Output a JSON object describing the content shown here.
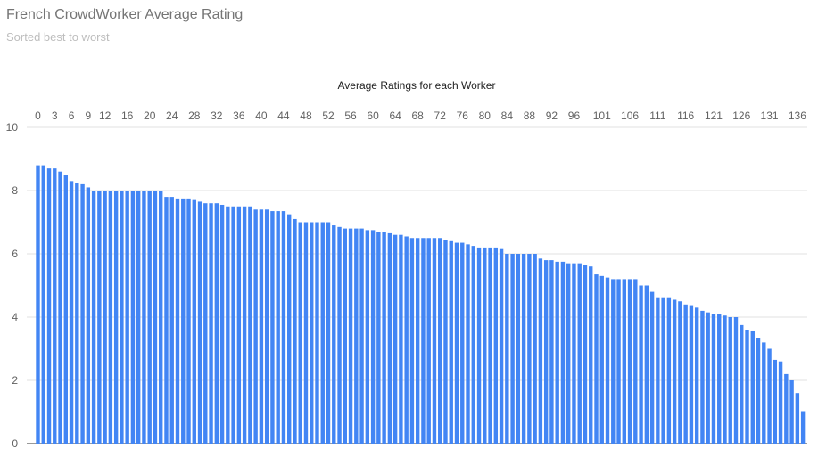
{
  "chart_data": {
    "type": "bar",
    "title": "French CrowdWorker Average Rating",
    "subtitle": "Sorted best to worst",
    "xlabel": "Average Ratings for each Worker",
    "ylabel": "",
    "x_axis_position": "top",
    "ylim": [
      0,
      10
    ],
    "yticks": [
      0,
      2,
      4,
      6,
      8,
      10
    ],
    "grid": true,
    "bar_color": "#4285f4",
    "x_tick_labels": [
      "0",
      "3",
      "6",
      "9",
      "12",
      "16",
      "20",
      "24",
      "28",
      "32",
      "36",
      "40",
      "44",
      "48",
      "52",
      "56",
      "60",
      "64",
      "68",
      "72",
      "76",
      "80",
      "84",
      "88",
      "92",
      "96",
      "101",
      "106",
      "111",
      "116",
      "121",
      "126",
      "131",
      "136"
    ],
    "x_tick_indices": [
      0,
      3,
      6,
      9,
      12,
      16,
      20,
      24,
      28,
      32,
      36,
      40,
      44,
      48,
      52,
      56,
      60,
      64,
      68,
      72,
      76,
      80,
      84,
      88,
      92,
      96,
      101,
      106,
      111,
      116,
      121,
      126,
      131,
      136
    ],
    "values": [
      8.8,
      8.8,
      8.7,
      8.7,
      8.6,
      8.5,
      8.3,
      8.25,
      8.2,
      8.1,
      8.0,
      8.0,
      8.0,
      8.0,
      8.0,
      8.0,
      8.0,
      8.0,
      8.0,
      8.0,
      8.0,
      8.0,
      8.0,
      7.8,
      7.8,
      7.75,
      7.75,
      7.75,
      7.7,
      7.65,
      7.6,
      7.6,
      7.6,
      7.55,
      7.5,
      7.5,
      7.5,
      7.5,
      7.5,
      7.4,
      7.4,
      7.4,
      7.35,
      7.35,
      7.35,
      7.25,
      7.1,
      7.0,
      7.0,
      7.0,
      7.0,
      7.0,
      7.0,
      6.9,
      6.85,
      6.8,
      6.8,
      6.8,
      6.8,
      6.75,
      6.75,
      6.7,
      6.7,
      6.65,
      6.6,
      6.6,
      6.55,
      6.5,
      6.5,
      6.5,
      6.5,
      6.5,
      6.5,
      6.45,
      6.4,
      6.35,
      6.35,
      6.3,
      6.25,
      6.2,
      6.2,
      6.2,
      6.2,
      6.15,
      6.0,
      6.0,
      6.0,
      6.0,
      6.0,
      6.0,
      5.85,
      5.8,
      5.8,
      5.75,
      5.75,
      5.7,
      5.7,
      5.7,
      5.65,
      5.6,
      5.35,
      5.3,
      5.25,
      5.2,
      5.2,
      5.2,
      5.2,
      5.2,
      5.0,
      5.0,
      4.8,
      4.6,
      4.6,
      4.6,
      4.55,
      4.5,
      4.4,
      4.35,
      4.3,
      4.2,
      4.15,
      4.1,
      4.1,
      4.05,
      4.0,
      4.0,
      3.75,
      3.6,
      3.55,
      3.35,
      3.2,
      3.0,
      2.65,
      2.6,
      2.2,
      2.0,
      1.6,
      1.0
    ]
  }
}
